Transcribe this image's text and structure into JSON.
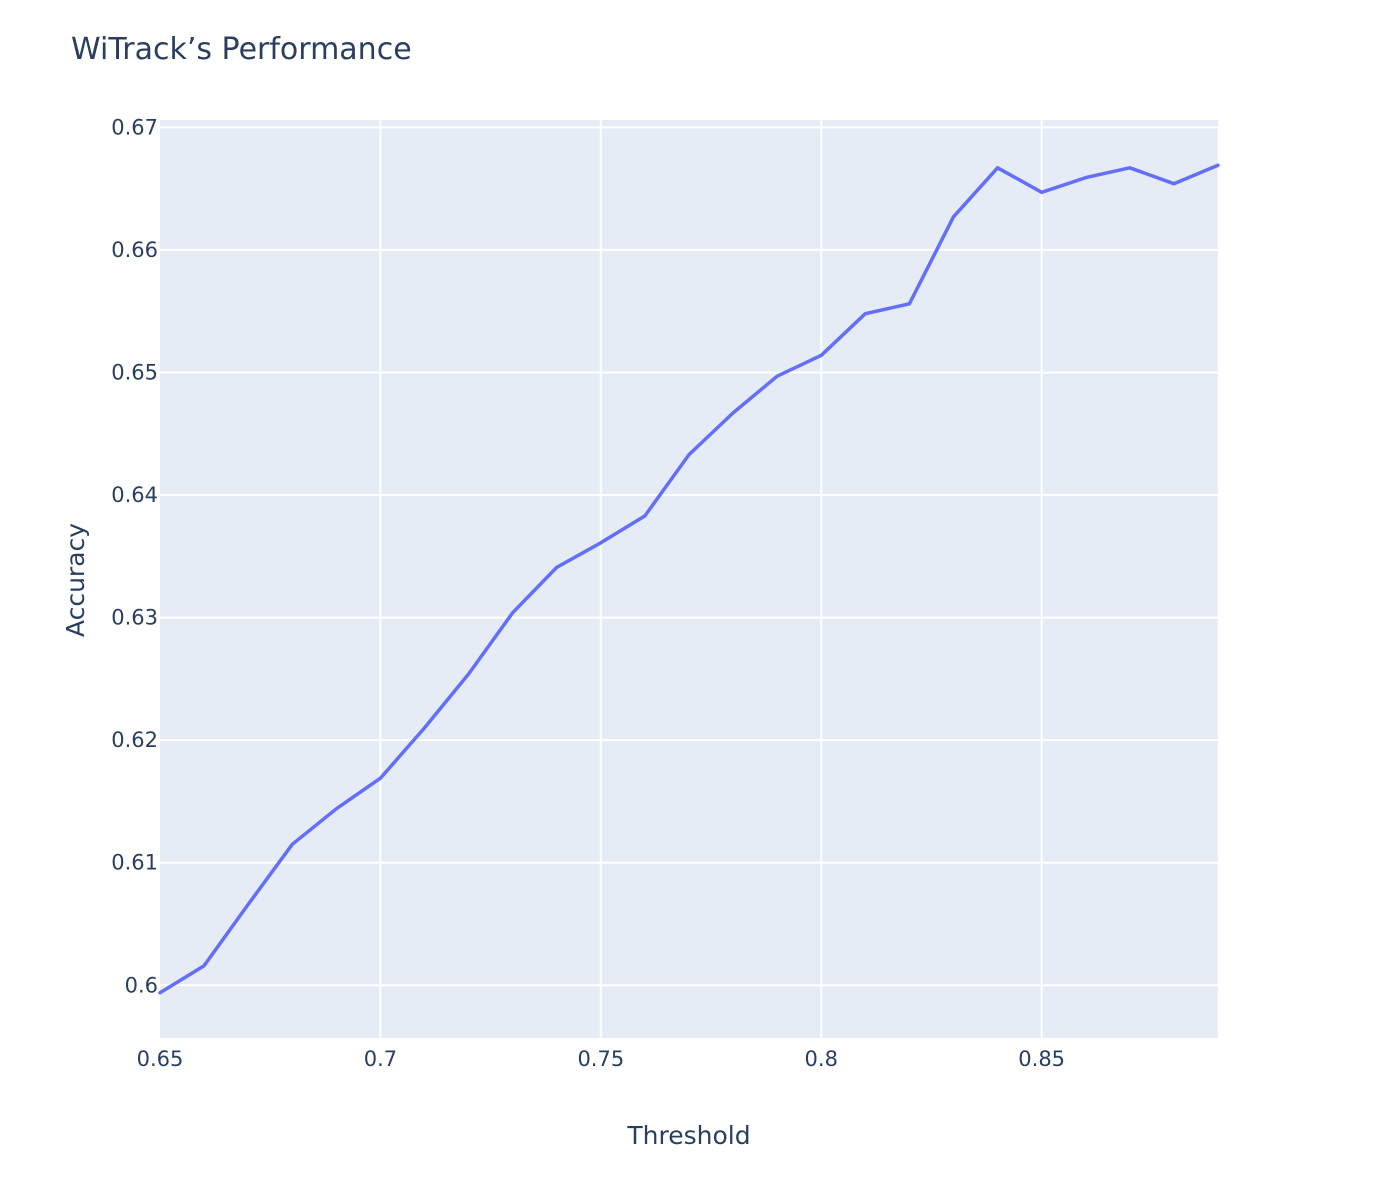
{
  "chart_data": {
    "type": "line",
    "title": "WiTrack’s Performance",
    "xlabel": "Threshold",
    "ylabel": "Accuracy",
    "xlim": [
      0.65,
      0.89
    ],
    "ylim": [
      0.5957,
      0.6706
    ],
    "x_ticks": [
      0.65,
      0.7,
      0.75,
      0.8,
      0.85
    ],
    "x_tick_labels": [
      "0.65",
      "0.7",
      "0.75",
      "0.8",
      "0.85"
    ],
    "y_ticks": [
      0.6,
      0.61,
      0.62,
      0.63,
      0.64,
      0.65,
      0.66,
      0.67
    ],
    "y_tick_labels": [
      "0.6",
      "0.61",
      "0.62",
      "0.63",
      "0.64",
      "0.65",
      "0.66",
      "0.67"
    ],
    "grid": true,
    "legend": "none",
    "colors": {
      "line": "#636efa",
      "plot_background": "#e5ecf6",
      "grid": "#ffffff",
      "text": "#2a3f5f"
    },
    "series": [
      {
        "x": [
          0.65,
          0.66,
          0.67,
          0.68,
          0.69,
          0.7,
          0.71,
          0.72,
          0.73,
          0.74,
          0.75,
          0.76,
          0.77,
          0.78,
          0.79,
          0.8,
          0.81,
          0.82,
          0.83,
          0.84,
          0.85,
          0.86,
          0.87,
          0.88,
          0.89
        ],
        "y": [
          0.5994,
          0.6016,
          0.6066,
          0.6115,
          0.6144,
          0.6169,
          0.621,
          0.6254,
          0.6304,
          0.6341,
          0.6361,
          0.6383,
          0.6433,
          0.6467,
          0.6497,
          0.6514,
          0.6548,
          0.6556,
          0.6627,
          0.6667,
          0.6647,
          0.6659,
          0.6667,
          0.6654,
          0.6669
        ]
      }
    ]
  }
}
